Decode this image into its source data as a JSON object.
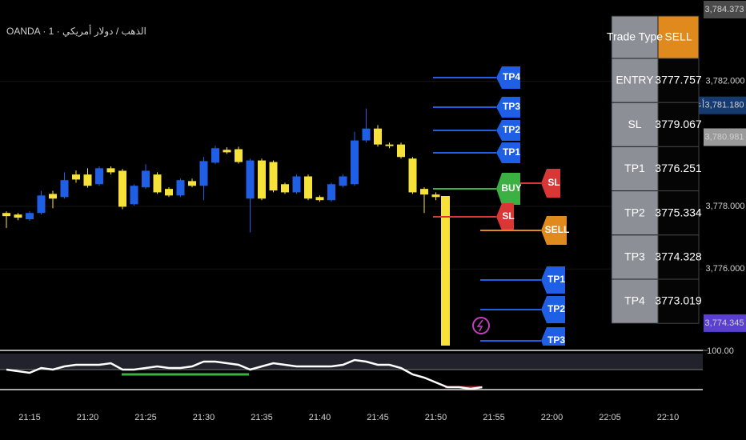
{
  "chart_data": [
    {
      "type": "candlestick",
      "title": "OANDA · 1 · الذهب / دولار أمريكي",
      "categories": [
        null,
        null,
        "21:15",
        null,
        null,
        null,
        null,
        "21:20",
        null,
        null,
        null,
        null,
        "21:25",
        null,
        null,
        null,
        null,
        "21:30",
        null,
        null,
        null,
        null,
        "21:35",
        null,
        null,
        null,
        null,
        "21:40",
        null,
        null,
        null,
        null,
        "21:45",
        null,
        null,
        null,
        null,
        "21:50",
        null,
        null,
        null,
        null,
        "21:55",
        null,
        null,
        null,
        null,
        "22:00",
        null,
        null,
        null,
        null,
        "22:05",
        null,
        null,
        null,
        null,
        "22:10"
      ],
      "open": [
        3777.79,
        3777.74,
        3777.59,
        3777.79,
        3778.4,
        3778.3,
        3779.02,
        3779.02,
        3778.71,
        3779.22,
        3779.14,
        3778.07,
        3778.61,
        3779.02,
        3778.56,
        3778.35,
        3778.81,
        3778.66,
        3779.4,
        3779.81,
        3779.83,
        3778.25,
        3779.47,
        3779.42,
        3778.71,
        3778.45,
        3778.96,
        3778.3,
        3778.2,
        3778.66,
        3778.71,
        3780.11,
        3780.49,
        3779.98,
        3779.98,
        3779.53,
        3778.56,
        3778.38,
        null,
        null,
        null,
        null,
        null,
        null,
        null,
        null,
        null,
        null,
        null,
        null,
        null,
        null,
        null,
        null,
        null,
        null,
        null,
        null
      ],
      "high": [
        3777.84,
        3777.79,
        3777.84,
        3778.5,
        3778.5,
        3779.09,
        3779.15,
        3779.22,
        3779.28,
        3779.28,
        3779.2,
        3778.71,
        3779.35,
        3779.09,
        3778.61,
        3778.89,
        3778.89,
        3779.58,
        3779.94,
        3779.89,
        3779.91,
        3779.53,
        3779.53,
        3779.47,
        3778.76,
        3779.02,
        3779.02,
        3778.35,
        3778.76,
        3779.02,
        3780.39,
        3781.13,
        3780.6,
        3780.04,
        3780.04,
        3779.58,
        3778.61,
        3778.45,
        null,
        null,
        null,
        null,
        null,
        null,
        null,
        null,
        null,
        null,
        null,
        null,
        null,
        null,
        null,
        null,
        null,
        null,
        null,
        null
      ],
      "low": [
        3777.31,
        3777.56,
        3777.54,
        3777.74,
        3777.94,
        3778.25,
        3778.76,
        3778.6,
        3778.66,
        3779.02,
        3777.91,
        3778.02,
        3778.56,
        3778.4,
        3778.3,
        3778.3,
        3778.61,
        3778.2,
        3779.35,
        3779.68,
        3779.37,
        3777.17,
        3778.2,
        3778.45,
        3778.4,
        3778.4,
        3778.2,
        3778.15,
        3778.15,
        3778.61,
        3778.66,
        3780.04,
        3779.91,
        3779.86,
        3779.53,
        3778.4,
        3777.79,
        3778.2,
        null,
        null,
        null,
        null,
        null,
        null,
        null,
        null,
        null,
        null,
        null,
        null,
        null,
        null,
        null,
        null,
        null,
        null,
        null,
        null
      ],
      "close": [
        3777.69,
        3777.64,
        3777.79,
        3778.35,
        3778.25,
        3778.84,
        3778.86,
        3778.66,
        3779.22,
        3779.09,
        3777.99,
        3778.66,
        3779.14,
        3778.45,
        3778.35,
        3778.84,
        3778.66,
        3779.45,
        3779.86,
        3779.73,
        3779.42,
        3779.47,
        3778.25,
        3778.51,
        3778.45,
        3778.96,
        3778.25,
        3778.2,
        3778.71,
        3778.96,
        3780.11,
        3780.49,
        3779.98,
        3779.93,
        3779.58,
        3778.45,
        3778.38,
        3778.3,
        null,
        null,
        null,
        null,
        null,
        null,
        null,
        null,
        null,
        null,
        null,
        null,
        null,
        null,
        null,
        null,
        null,
        null,
        null,
        null
      ],
      "up_color": "#1f5fe6",
      "down_color": "#f7e23a",
      "ylim": [
        3773.55,
        3784.6
      ],
      "yticks": [
        {
          "value": 3776,
          "label": "3,776.000"
        },
        {
          "value": 3778,
          "label": "3,778.000"
        },
        {
          "value": 3782,
          "label": "3,782.000"
        }
      ],
      "grid": true,
      "price_labels": [
        {
          "value": 3784.373,
          "label": "3,784.373"
        },
        {
          "value": 3781.18,
          "label": "3,781.180"
        },
        {
          "value": 3780.981,
          "label": "3,780.981"
        },
        {
          "value": 3774.345,
          "label": "3,774.345"
        }
      ],
      "high_label": "أعلى سعر"
    },
    {
      "type": "line",
      "color": "#ffffff",
      "values": [
        52,
        48,
        44,
        56,
        52,
        60,
        64,
        64,
        64,
        68,
        52,
        52,
        56,
        60,
        56,
        56,
        60,
        72,
        72,
        68,
        64,
        52,
        60,
        68,
        64,
        60,
        60,
        60,
        60,
        64,
        76,
        72,
        64,
        64,
        56,
        40,
        32,
        20,
        8,
        8,
        4,
        8,
        null,
        null,
        null,
        null,
        null,
        null,
        null,
        null,
        null,
        null,
        null,
        null,
        null,
        null,
        null,
        null
      ],
      "ylim": [
        0,
        100
      ],
      "yticks": [
        {
          "value": 100,
          "label": "100.00"
        }
      ]
    }
  ],
  "trade_markers": [
    "TP4",
    "TP3",
    "TP2",
    "TP1",
    "BUY",
    "SL",
    "SL",
    "SELL",
    "TP1",
    "TP2",
    "TP3"
  ],
  "table": {
    "header": [
      "Trade Type",
      "SELL"
    ],
    "rows": [
      [
        "ENTRY",
        3777.757
      ],
      [
        "SL",
        3779.067
      ],
      [
        "TP1",
        3776.251
      ],
      [
        "TP2",
        3775.334
      ],
      [
        "TP3",
        3774.328
      ],
      [
        "TP4",
        3773.019
      ]
    ]
  }
}
